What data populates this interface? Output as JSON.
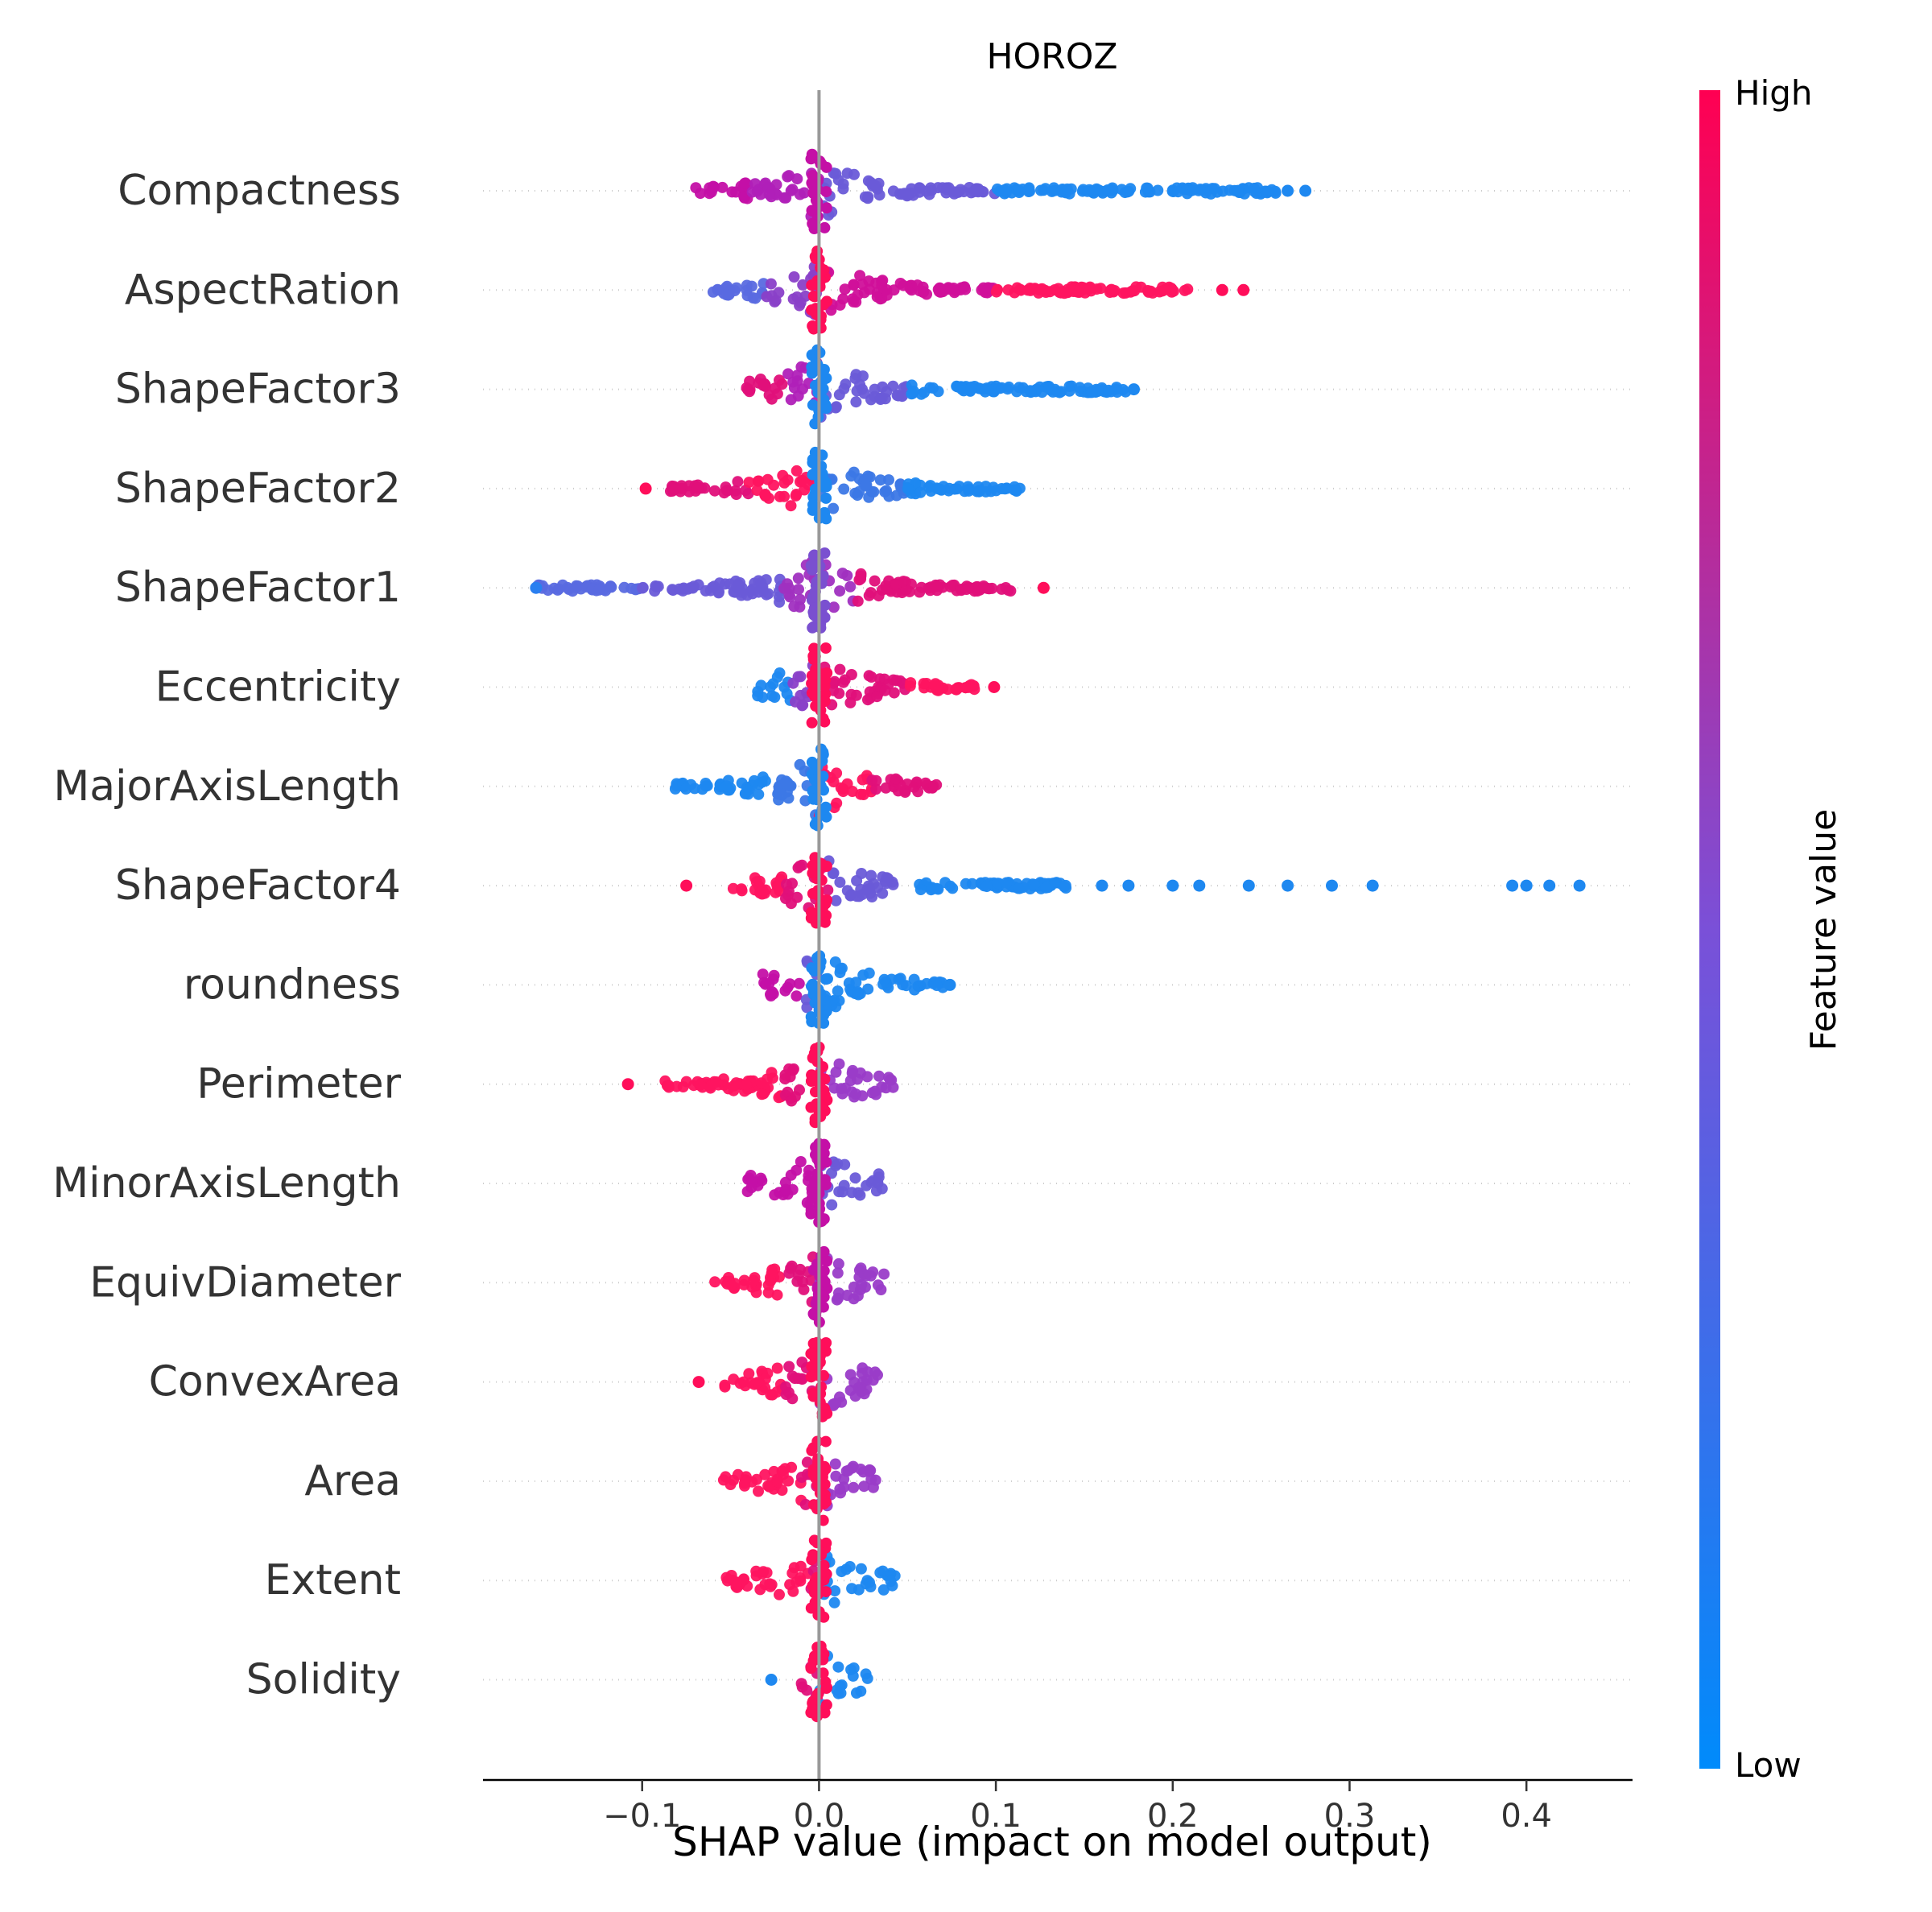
{
  "chart_data": {
    "type": "scatter",
    "subtype": "shap-beeswarm-summary",
    "title": "HOROZ",
    "xlabel": "SHAP value (impact on model output)",
    "ylabel": "",
    "xlim": [
      -0.19,
      0.46
    ],
    "x_ticks": [
      -0.1,
      0.0,
      0.1,
      0.2,
      0.3,
      0.4
    ],
    "x_tick_labels": [
      "−0.1",
      "0.0",
      "0.1",
      "0.2",
      "0.3",
      "0.4"
    ],
    "grid": false,
    "features": [
      {
        "name": "Compactness",
        "dominant_color": "#c410a6",
        "segments": [
          {
            "from": -0.07,
            "to": -0.04,
            "color": "#c410a6"
          },
          {
            "from": -0.04,
            "to": 0.0,
            "color": "#b020b8"
          },
          {
            "from": 0.0,
            "to": 0.1,
            "color": "#6a5bd8"
          },
          {
            "from": 0.1,
            "to": 0.26,
            "color": "#1e88f0"
          }
        ],
        "extremes": [
          -0.07,
          0.275
        ],
        "outliers": [
          {
            "x": 0.265,
            "color": "#1e88f0"
          },
          {
            "x": 0.275,
            "color": "#1e88f0"
          }
        ]
      },
      {
        "name": "AspectRation",
        "dominant_color": "#ff0e5a",
        "segments": [
          {
            "from": -0.06,
            "to": -0.03,
            "color": "#5a6ae0"
          },
          {
            "from": -0.03,
            "to": 0.0,
            "color": "#8a40c8"
          },
          {
            "from": 0.0,
            "to": 0.1,
            "color": "#d0109a"
          },
          {
            "from": 0.1,
            "to": 0.21,
            "color": "#ff1460"
          }
        ],
        "extremes": [
          -0.06,
          0.24
        ],
        "outliers": [
          {
            "x": 0.228,
            "color": "#ff0e5a"
          },
          {
            "x": 0.24,
            "color": "#ff0e5a"
          }
        ]
      },
      {
        "name": "ShapeFactor3",
        "dominant_color": "#1e88f0",
        "segments": [
          {
            "from": -0.045,
            "to": -0.02,
            "color": "#e0107a"
          },
          {
            "from": -0.02,
            "to": 0.0,
            "color": "#b020b8"
          },
          {
            "from": 0.0,
            "to": 0.05,
            "color": "#6a5bd8"
          },
          {
            "from": 0.05,
            "to": 0.175,
            "color": "#1e88f0"
          }
        ],
        "extremes": [
          -0.045,
          0.178
        ],
        "outliers": [
          {
            "x": 0.178,
            "color": "#1e88f0"
          }
        ]
      },
      {
        "name": "ShapeFactor2",
        "dominant_color": "#1e88f0",
        "segments": [
          {
            "from": -0.085,
            "to": -0.04,
            "color": "#e0107a"
          },
          {
            "from": -0.04,
            "to": 0.0,
            "color": "#ff1460"
          },
          {
            "from": 0.0,
            "to": 0.05,
            "color": "#3c78e6"
          },
          {
            "from": 0.05,
            "to": 0.115,
            "color": "#1e88f0"
          }
        ],
        "extremes": [
          -0.098,
          0.115
        ],
        "outliers": [
          {
            "x": -0.098,
            "color": "#ff0e5a"
          }
        ]
      },
      {
        "name": "ShapeFactor1",
        "dominant_color": "#7a50d0",
        "segments": [
          {
            "from": -0.16,
            "to": -0.1,
            "color": "#5a6ae0"
          },
          {
            "from": -0.1,
            "to": -0.02,
            "color": "#6a5bd8"
          },
          {
            "from": -0.02,
            "to": 0.02,
            "color": "#a030c0"
          },
          {
            "from": 0.02,
            "to": 0.11,
            "color": "#e0107a"
          }
        ],
        "extremes": [
          -0.16,
          0.127
        ],
        "outliers": [
          {
            "x": -0.16,
            "color": "#2a7ff0"
          },
          {
            "x": 0.127,
            "color": "#ff0e5a"
          }
        ]
      },
      {
        "name": "Eccentricity",
        "dominant_color": "#ff0e5a",
        "segments": [
          {
            "from": -0.035,
            "to": -0.015,
            "color": "#1e88f0"
          },
          {
            "from": -0.015,
            "to": 0.0,
            "color": "#8a40c8"
          },
          {
            "from": 0.0,
            "to": 0.05,
            "color": "#e0107a"
          },
          {
            "from": 0.05,
            "to": 0.09,
            "color": "#ff1460"
          }
        ],
        "extremes": [
          -0.035,
          0.099
        ],
        "outliers": [
          {
            "x": 0.099,
            "color": "#ff0e5a"
          }
        ]
      },
      {
        "name": "MajorAxisLength",
        "dominant_color": "#1e88f0",
        "segments": [
          {
            "from": -0.083,
            "to": -0.03,
            "color": "#1e88f0"
          },
          {
            "from": -0.03,
            "to": 0.0,
            "color": "#3c78e6"
          },
          {
            "from": 0.0,
            "to": 0.03,
            "color": "#ff1460"
          },
          {
            "from": 0.03,
            "to": 0.068,
            "color": "#e0107a"
          }
        ],
        "extremes": [
          -0.083,
          0.068
        ],
        "outliers": []
      },
      {
        "name": "ShapeFactor4",
        "dominant_color": "#ff0e5a",
        "segments": [
          {
            "from": -0.05,
            "to": -0.02,
            "color": "#ff1460"
          },
          {
            "from": -0.02,
            "to": 0.005,
            "color": "#e0107a"
          },
          {
            "from": 0.005,
            "to": 0.05,
            "color": "#6a5bd8"
          },
          {
            "from": 0.05,
            "to": 0.14,
            "color": "#1e88f0"
          }
        ],
        "extremes": [
          -0.075,
          0.43
        ],
        "outliers": [
          {
            "x": -0.075,
            "color": "#ff0e5a"
          },
          {
            "x": 0.16,
            "color": "#1e88f0"
          },
          {
            "x": 0.175,
            "color": "#1e88f0"
          },
          {
            "x": 0.2,
            "color": "#1e88f0"
          },
          {
            "x": 0.215,
            "color": "#1e88f0"
          },
          {
            "x": 0.243,
            "color": "#1e88f0"
          },
          {
            "x": 0.265,
            "color": "#1e88f0"
          },
          {
            "x": 0.29,
            "color": "#1e88f0"
          },
          {
            "x": 0.313,
            "color": "#1e88f0"
          },
          {
            "x": 0.392,
            "color": "#1e88f0"
          },
          {
            "x": 0.4,
            "color": "#1e88f0"
          },
          {
            "x": 0.413,
            "color": "#1e88f0"
          },
          {
            "x": 0.43,
            "color": "#1e88f0"
          }
        ]
      },
      {
        "name": "roundness",
        "dominant_color": "#1e88f0",
        "segments": [
          {
            "from": -0.032,
            "to": -0.01,
            "color": "#c410a6"
          },
          {
            "from": -0.01,
            "to": 0.0,
            "color": "#6a5bd8"
          },
          {
            "from": 0.0,
            "to": 0.07,
            "color": "#1e88f0"
          }
        ],
        "extremes": [
          -0.032,
          0.074
        ],
        "outliers": [
          {
            "x": 0.074,
            "color": "#1e88f0"
          }
        ]
      },
      {
        "name": "Perimeter",
        "dominant_color": "#ff0e5a",
        "segments": [
          {
            "from": -0.09,
            "to": -0.02,
            "color": "#ff1460"
          },
          {
            "from": -0.02,
            "to": 0.0,
            "color": "#e0107a"
          },
          {
            "from": 0.0,
            "to": 0.042,
            "color": "#9a3cc8"
          }
        ],
        "extremes": [
          -0.108,
          0.042
        ],
        "outliers": [
          {
            "x": -0.108,
            "color": "#ff0e5a"
          }
        ]
      },
      {
        "name": "MinorAxisLength",
        "dominant_color": "#c410a6",
        "segments": [
          {
            "from": -0.044,
            "to": 0.0,
            "color": "#c410a6"
          },
          {
            "from": 0.0,
            "to": 0.036,
            "color": "#6a5bd8"
          }
        ],
        "extremes": [
          -0.044,
          0.036
        ],
        "outliers": []
      },
      {
        "name": "EquivDiameter",
        "dominant_color": "#c410a6",
        "segments": [
          {
            "from": -0.06,
            "to": -0.02,
            "color": "#ff1460"
          },
          {
            "from": -0.02,
            "to": 0.0,
            "color": "#e0107a"
          },
          {
            "from": 0.0,
            "to": 0.037,
            "color": "#9a3cc8"
          }
        ],
        "extremes": [
          -0.06,
          0.037
        ],
        "outliers": []
      },
      {
        "name": "ConvexArea",
        "dominant_color": "#ff0e5a",
        "segments": [
          {
            "from": -0.056,
            "to": -0.02,
            "color": "#ff1460"
          },
          {
            "from": -0.02,
            "to": 0.0,
            "color": "#e0107a"
          },
          {
            "from": 0.0,
            "to": 0.035,
            "color": "#9a3cc8"
          }
        ],
        "extremes": [
          -0.068,
          0.035
        ],
        "outliers": [
          {
            "x": -0.068,
            "color": "#ff0e5a"
          }
        ]
      },
      {
        "name": "Area",
        "dominant_color": "#ff0e5a",
        "segments": [
          {
            "from": -0.054,
            "to": -0.01,
            "color": "#ff1460"
          },
          {
            "from": -0.01,
            "to": 0.0,
            "color": "#e0107a"
          },
          {
            "from": 0.0,
            "to": 0.038,
            "color": "#9a3cc8"
          }
        ],
        "extremes": [
          -0.054,
          0.038
        ],
        "outliers": []
      },
      {
        "name": "Extent",
        "dominant_color": "#ff0e5a",
        "segments": [
          {
            "from": -0.053,
            "to": -0.005,
            "color": "#ff1460"
          },
          {
            "from": -0.005,
            "to": 0.0,
            "color": "#e0107a"
          },
          {
            "from": 0.0,
            "to": 0.043,
            "color": "#1e88f0"
          }
        ],
        "extremes": [
          -0.053,
          0.043
        ],
        "outliers": []
      },
      {
        "name": "Solidity",
        "dominant_color": "#ff0e5a",
        "segments": [
          {
            "from": -0.01,
            "to": 0.0,
            "color": "#e0107a"
          },
          {
            "from": 0.0,
            "to": 0.013,
            "color": "#1e88f0"
          },
          {
            "from": 0.018,
            "to": 0.028,
            "color": "#1e88f0"
          }
        ],
        "extremes": [
          -0.027,
          0.028
        ],
        "outliers": [
          {
            "x": -0.027,
            "color": "#1e88f0"
          }
        ]
      }
    ],
    "colorbar": {
      "label": "Feature value",
      "high_label": "High",
      "low_label": "Low",
      "high_color": "#ff0052",
      "mid_color": "#7a50d8",
      "low_color": "#008bfb"
    },
    "zero_line_color": "#999999"
  }
}
